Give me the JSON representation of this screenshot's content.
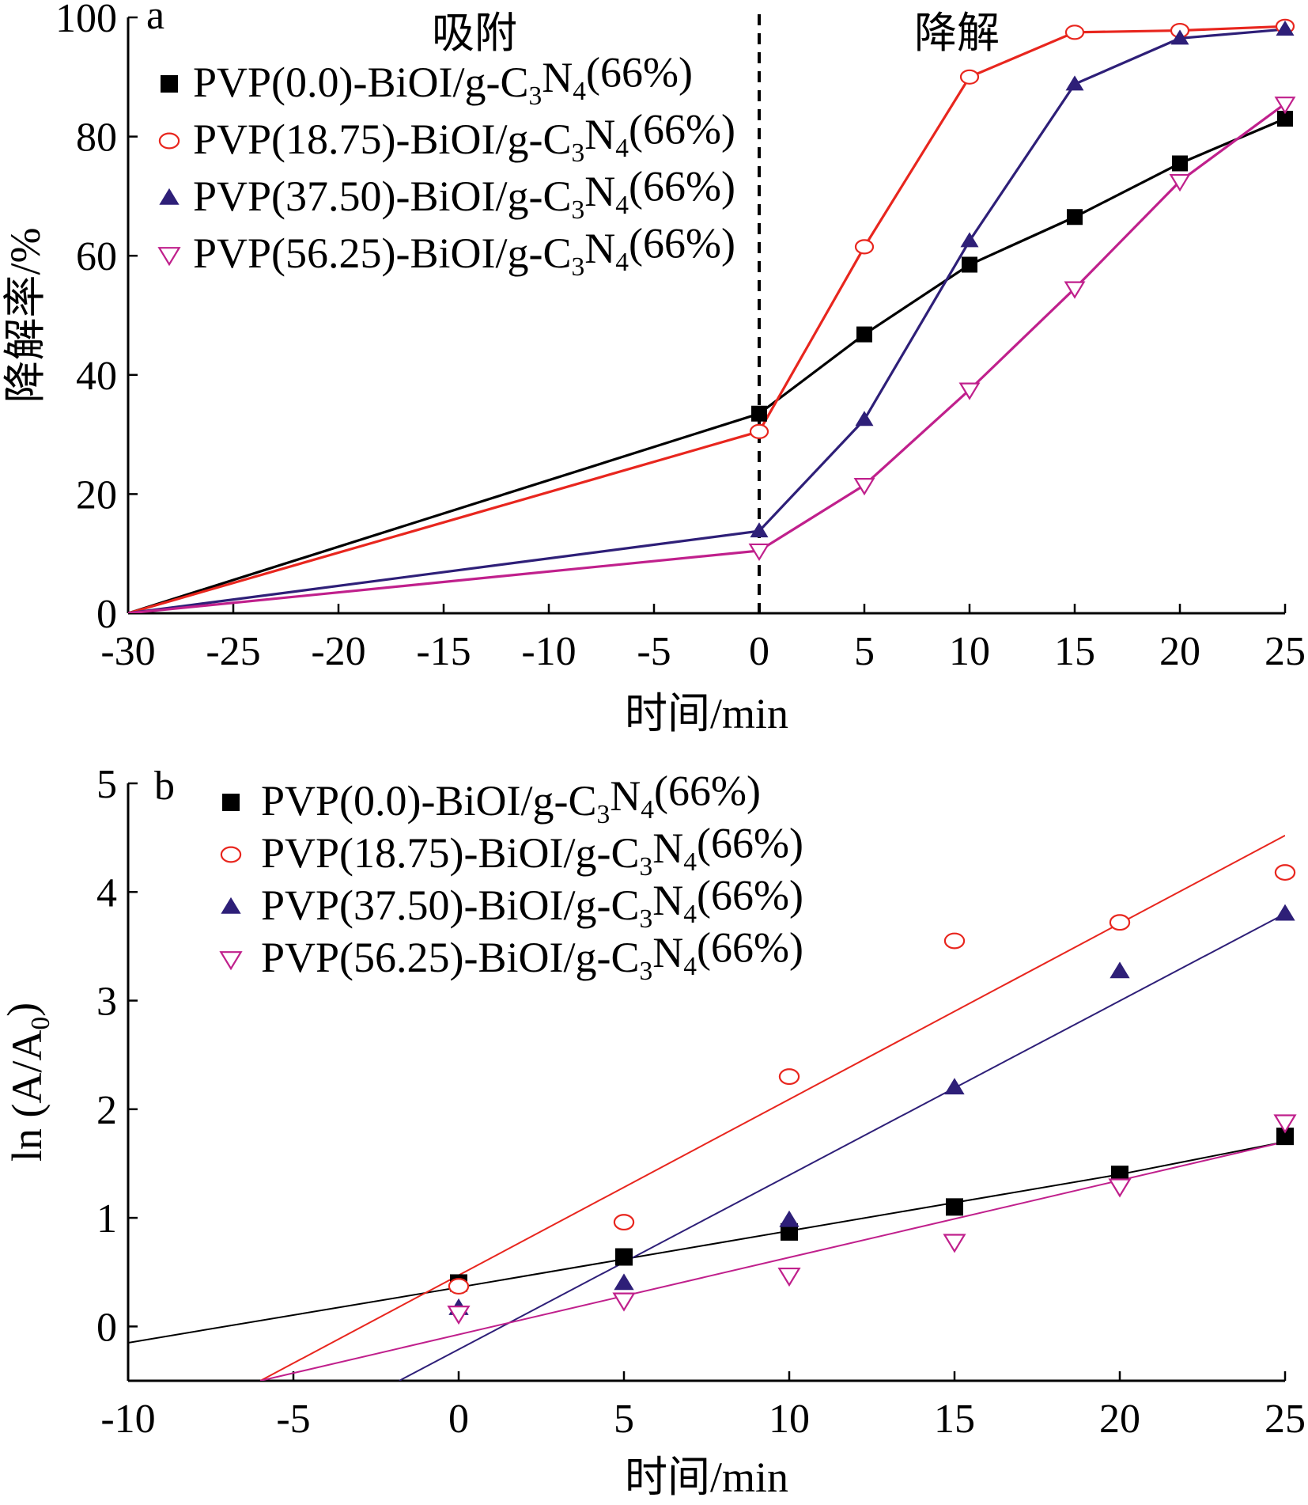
{
  "chart_data": [
    {
      "panel_label": "a",
      "type": "line",
      "xlabel": "时间/min",
      "ylabel": "降解率/%",
      "xlim": [
        -30,
        25
      ],
      "ylim": [
        0,
        100
      ],
      "xticks": [
        -30,
        -25,
        -20,
        -15,
        -10,
        -5,
        0,
        5,
        10,
        15,
        20,
        25
      ],
      "yticks": [
        0,
        20,
        40,
        60,
        80,
        100
      ],
      "region_labels": {
        "left": "吸附",
        "right": "降解"
      },
      "divider_x": 0,
      "legend_position": "top-left",
      "series": [
        {
          "name": "PVP(0.0)-BiOI/g-C₃N₄(66%)",
          "color": "#000000",
          "marker": "square",
          "x": [
            -30,
            0,
            5,
            10,
            15,
            20,
            25
          ],
          "y": [
            0,
            33.5,
            46.8,
            58.5,
            66.5,
            75.5,
            83.0
          ]
        },
        {
          "name": "PVP(18.75)-BiOI/g-C₃N₄(66%)",
          "color": "#e8261e",
          "marker": "circle-open",
          "x": [
            -30,
            0,
            5,
            10,
            15,
            20,
            25
          ],
          "y": [
            0,
            30.5,
            61.5,
            90.0,
            97.5,
            97.8,
            98.5
          ]
        },
        {
          "name": "PVP(37.50)-BiOI/g-C₃N₄(66%)",
          "color": "#2e1f78",
          "marker": "triangle-up",
          "x": [
            -30,
            0,
            5,
            10,
            15,
            20,
            25
          ],
          "y": [
            0,
            13.8,
            32.5,
            62.5,
            88.8,
            96.5,
            98.0
          ]
        },
        {
          "name": "PVP(56.25)-BiOI/g-C₃N₄(66%)",
          "color": "#c0208c",
          "marker": "triangle-down-open",
          "x": [
            -30,
            0,
            5,
            10,
            15,
            20,
            25
          ],
          "y": [
            0,
            10.5,
            21.5,
            37.5,
            54.5,
            72.5,
            85.5
          ]
        }
      ]
    },
    {
      "panel_label": "b",
      "type": "scatter",
      "xlabel": "时间/min",
      "ylabel": "ln (A/A₀)",
      "xlim": [
        -10,
        25
      ],
      "ylim": [
        -0.5,
        5
      ],
      "xticks": [
        -10,
        -5,
        0,
        5,
        10,
        15,
        20,
        25
      ],
      "yticks": [
        0,
        1,
        2,
        3,
        4,
        5
      ],
      "legend_position": "top-left",
      "series": [
        {
          "name": "PVP(0.0)-BiOI/g-C₃N₄(66%)",
          "color": "#000000",
          "marker": "square",
          "x": [
            0,
            5,
            10,
            15,
            20,
            25
          ],
          "y": [
            0.4,
            0.64,
            0.87,
            1.1,
            1.4,
            1.75
          ],
          "fit_line": {
            "kind": "quadratic",
            "x": [
              -10,
              0,
              5,
              10,
              15,
              20,
              25
            ],
            "y": [
              -0.15,
              0.36,
              0.62,
              0.88,
              1.14,
              1.4,
              1.7
            ]
          }
        },
        {
          "name": "PVP(18.75)-BiOI/g-C₃N₄(66%)",
          "color": "#e8261e",
          "marker": "circle-open",
          "x": [
            0,
            5,
            10,
            15,
            20,
            25
          ],
          "y": [
            0.37,
            0.96,
            2.3,
            3.55,
            3.72,
            4.18
          ],
          "fit_line": {
            "kind": "linear",
            "x": [
              -6,
              25
            ],
            "y": [
              -0.5,
              4.52
            ]
          }
        },
        {
          "name": "PVP(37.50)-BiOI/g-C₃N₄(66%)",
          "color": "#2e1f78",
          "marker": "triangle-up",
          "x": [
            0,
            5,
            10,
            15,
            20,
            25
          ],
          "y": [
            0.17,
            0.4,
            0.98,
            2.2,
            3.27,
            3.8
          ],
          "fit_line": {
            "kind": "linear",
            "x": [
              -1.8,
              25
            ],
            "y": [
              -0.5,
              3.8
            ]
          }
        },
        {
          "name": "PVP(56.25)-BiOI/g-C₃N₄(66%)",
          "color": "#c0208c",
          "marker": "triangle-down-open",
          "x": [
            0,
            5,
            10,
            15,
            20,
            25
          ],
          "y": [
            0.12,
            0.24,
            0.47,
            0.78,
            1.29,
            1.88
          ],
          "fit_line": {
            "kind": "linear",
            "x": [
              -6,
              25
            ],
            "y": [
              -0.5,
              1.7
            ]
          }
        }
      ]
    }
  ]
}
